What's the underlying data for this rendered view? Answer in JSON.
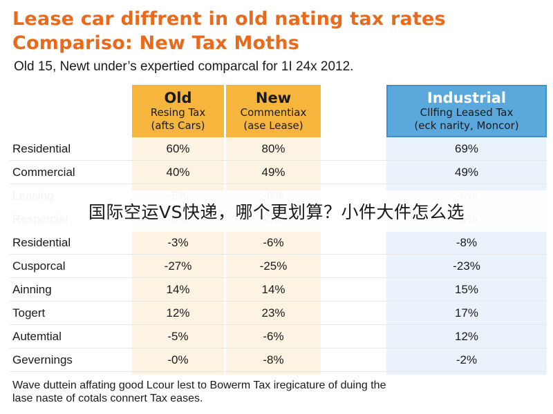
{
  "header": {
    "title_line1": "Lease car diffrent in old nating tax rates",
    "title_line2": "Compariso: New Tax Moths",
    "subtitle": "Old 15, Newt under’s expertied comparcal for 1I 24x 2012."
  },
  "overlay_text": "国际空运VS快递，哪个更划算？小件大件怎么选",
  "footnote": {
    "line1": "Wave duttein affating good Lcour lest to Bowerm Tax iregicature of duing the",
    "line2": "lase naste of cotals connert Tax eases."
  },
  "colors": {
    "title": "#e86a1c",
    "header_old_new": "#f6b53c",
    "header_industrial": "#5aa8dc",
    "band_warm": "#fdf3e3",
    "band_cool": "#eaf3fb"
  },
  "chart_data": {
    "type": "table",
    "columns": [
      {
        "name": "Old",
        "sub1": "Resing Tax",
        "sub2": "(afts Cars)"
      },
      {
        "name": "New",
        "sub1": "Commentiax",
        "sub2": "(ase Lease)"
      },
      {
        "name": "Industrial",
        "sub1": "Cllfing Leased Tax",
        "sub2": "(eck narity, Moncor)"
      }
    ],
    "rows": [
      {
        "label": "Residential",
        "values": [
          "60%",
          "80%",
          "69%"
        ]
      },
      {
        "label": "Commercial",
        "values": [
          "40%",
          "49%",
          "49%"
        ]
      },
      {
        "label": "Leasing",
        "values": [
          "-5%",
          "-6%",
          "-6%"
        ],
        "faded": true
      },
      {
        "label": "Respercial",
        "values": [
          "-5%",
          "-5%",
          "-5%"
        ],
        "faded": true
      },
      {
        "label": "Residential",
        "values": [
          "-3%",
          "-6%",
          "-8%"
        ]
      },
      {
        "label": "Cusporcal",
        "values": [
          "-27%",
          "-25%",
          "-23%"
        ]
      },
      {
        "label": "Ainning",
        "values": [
          "14%",
          "14%",
          "15%"
        ]
      },
      {
        "label": "Togert",
        "values": [
          "12%",
          "23%",
          "17%"
        ]
      },
      {
        "label": "Autemtial",
        "values": [
          "-5%",
          "-6%",
          "12%"
        ]
      },
      {
        "label": "Gevernings",
        "values": [
          "-0%",
          "-8%",
          "-2%"
        ]
      }
    ]
  }
}
